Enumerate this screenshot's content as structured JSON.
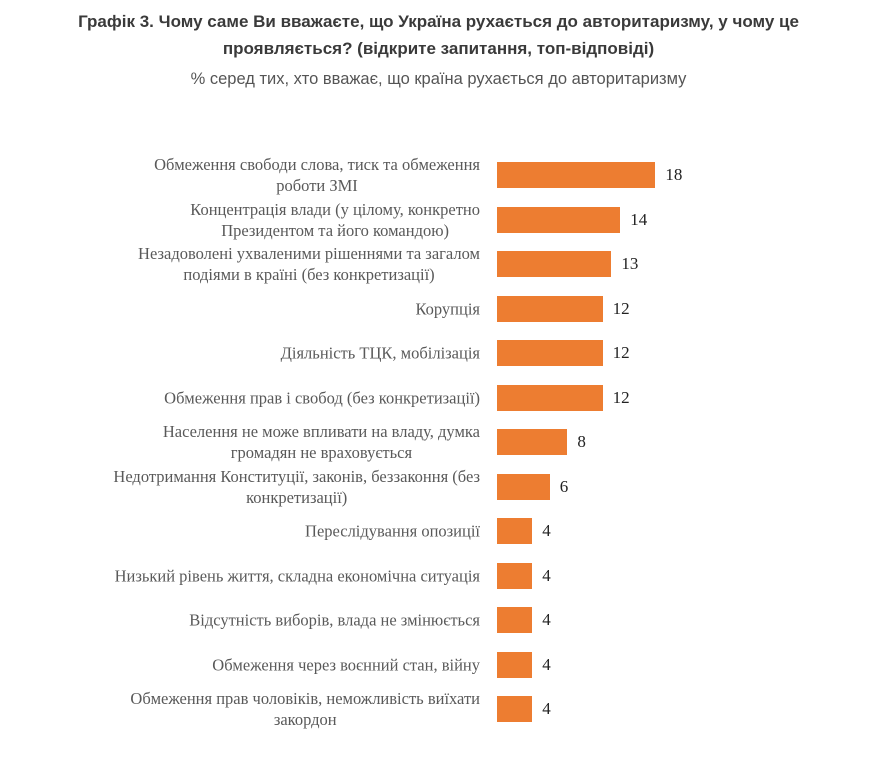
{
  "chart_data": {
    "type": "bar",
    "orientation": "horizontal",
    "title": "Графік 3. Чому саме Ви вважаєте, що Україна рухається до авторитаризму, у чому це проявляється? (відкрите запитання, топ-відповіді)",
    "subtitle": "% серед тих, хто вважає, що країна рухається до авторитаризму",
    "bar_color": "#ed7d31",
    "grid": false,
    "categories": [
      [
        "Обмеження свободи слова, тиск та обмеження",
        "роботи ЗМІ"
      ],
      [
        "Концентрація влади (у цілому, конкретно",
        "Президентом та його командою)"
      ],
      [
        "Незадоволені ухваленими рішеннями та загалом",
        "подіями в країні (без конкретизації)"
      ],
      [
        "Корупція"
      ],
      [
        "Діяльність ТЦК, мобілізація"
      ],
      [
        "Обмеження прав і свобод (без конкретизації)"
      ],
      [
        "Населення не може впливати на владу, думка",
        "громадян не враховується"
      ],
      [
        "Недотримання Конституції, законів, беззаконня (без",
        "конкретизації)"
      ],
      [
        "Переслідування опозиції"
      ],
      [
        "Низький рівень життя, складна економічна ситуація"
      ],
      [
        "Відсутність виборів, влада не змінюється"
      ],
      [
        "Обмеження через воєнний стан, війну"
      ],
      [
        "Обмеження прав чоловіків, неможливість виїхати",
        "закордон"
      ]
    ],
    "values": [
      18,
      14,
      13,
      12,
      12,
      12,
      8,
      6,
      4,
      4,
      4,
      4,
      4
    ]
  }
}
